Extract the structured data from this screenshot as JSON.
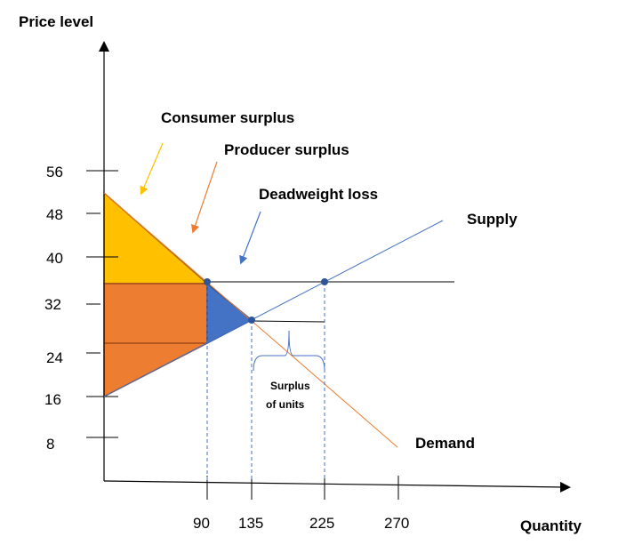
{
  "axes": {
    "y_title": "Price level",
    "x_title": "Quantity",
    "y_ticks": [
      "56",
      "48",
      "40",
      "32",
      "24",
      "16",
      "8"
    ],
    "x_ticks": [
      "90",
      "135",
      "225",
      "270"
    ]
  },
  "labels": {
    "consumer_surplus": "Consumer surplus",
    "producer_surplus": "Producer surplus",
    "deadweight_loss": "Deadweight loss",
    "supply": "Supply",
    "demand": "Demand",
    "surplus_line1": "Surplus",
    "surplus_line2": "of units"
  },
  "colors": {
    "consumer_surplus": "#FFC000",
    "producer_surplus": "#ED7D31",
    "deadweight_loss": "#4472C4",
    "supply_line": "#4472C4",
    "demand_line": "#ED7D31"
  }
}
